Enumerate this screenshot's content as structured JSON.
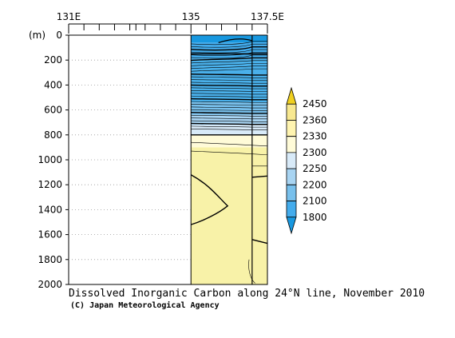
{
  "chart_data": {
    "type": "heatmap",
    "title": "Dissolved Inorganic Carbon along 24°N line, November 2010",
    "credit": "(C) Japan Meteorological Agency",
    "ylabel": "(m)",
    "x_ticks_labeled": [
      {
        "value": 131,
        "label": "131E"
      },
      {
        "value": 135,
        "label": "135"
      },
      {
        "value": 137.5,
        "label": "137.5E"
      }
    ],
    "x_minor_ticks": [
      131.5,
      132,
      132.5,
      133,
      133.2,
      133.5,
      134,
      134.5,
      135.5,
      136,
      136.5,
      137
    ],
    "xlim": [
      131,
      137.5
    ],
    "ylim": [
      0,
      2000
    ],
    "y_ticks": [
      0,
      200,
      400,
      600,
      800,
      1000,
      1200,
      1400,
      1600,
      1800,
      2000
    ],
    "data_extent_x": [
      135,
      137.5
    ],
    "station_x": 137.0,
    "legend": {
      "placement": "right",
      "labels": [
        "2450",
        "2360",
        "2330",
        "2300",
        "2250",
        "2200",
        "2100",
        "1800"
      ],
      "colors": [
        "#f0d020",
        "#f8e890",
        "#fff4b0",
        "#fffbd8",
        "#d8eaf8",
        "#a8d4f2",
        "#78c0ec",
        "#44acec",
        "#1898e0"
      ]
    },
    "bands": [
      {
        "range": [
          "<1800",
          "1800"
        ],
        "depth": [
          0,
          60
        ],
        "color": "#1898e0"
      },
      {
        "range": [
          "1800",
          "2100"
        ],
        "depth": [
          60,
          190
        ],
        "color": "#44acec"
      },
      {
        "range": [
          "2100",
          "2200"
        ],
        "depth": [
          190,
          540
        ],
        "color": "#4ab0ea"
      },
      {
        "range": [
          "2200",
          "2250"
        ],
        "depth": [
          540,
          640
        ],
        "color": "#78c0ec"
      },
      {
        "range": [
          "2250",
          "2300"
        ],
        "depth": [
          640,
          720
        ],
        "color": "#a8d4f2"
      },
      {
        "range": [
          "2300",
          "2330"
        ],
        "depth": [
          720,
          800
        ],
        "color": "#d8eaf8"
      },
      {
        "range": [
          "2330",
          "2360"
        ],
        "depth": [
          800,
          900
        ],
        "color": "#fffbd8"
      },
      {
        "range": [
          "2360",
          "2450"
        ],
        "depth": [
          900,
          2000
        ],
        "color": "#f8f2a8"
      }
    ]
  }
}
